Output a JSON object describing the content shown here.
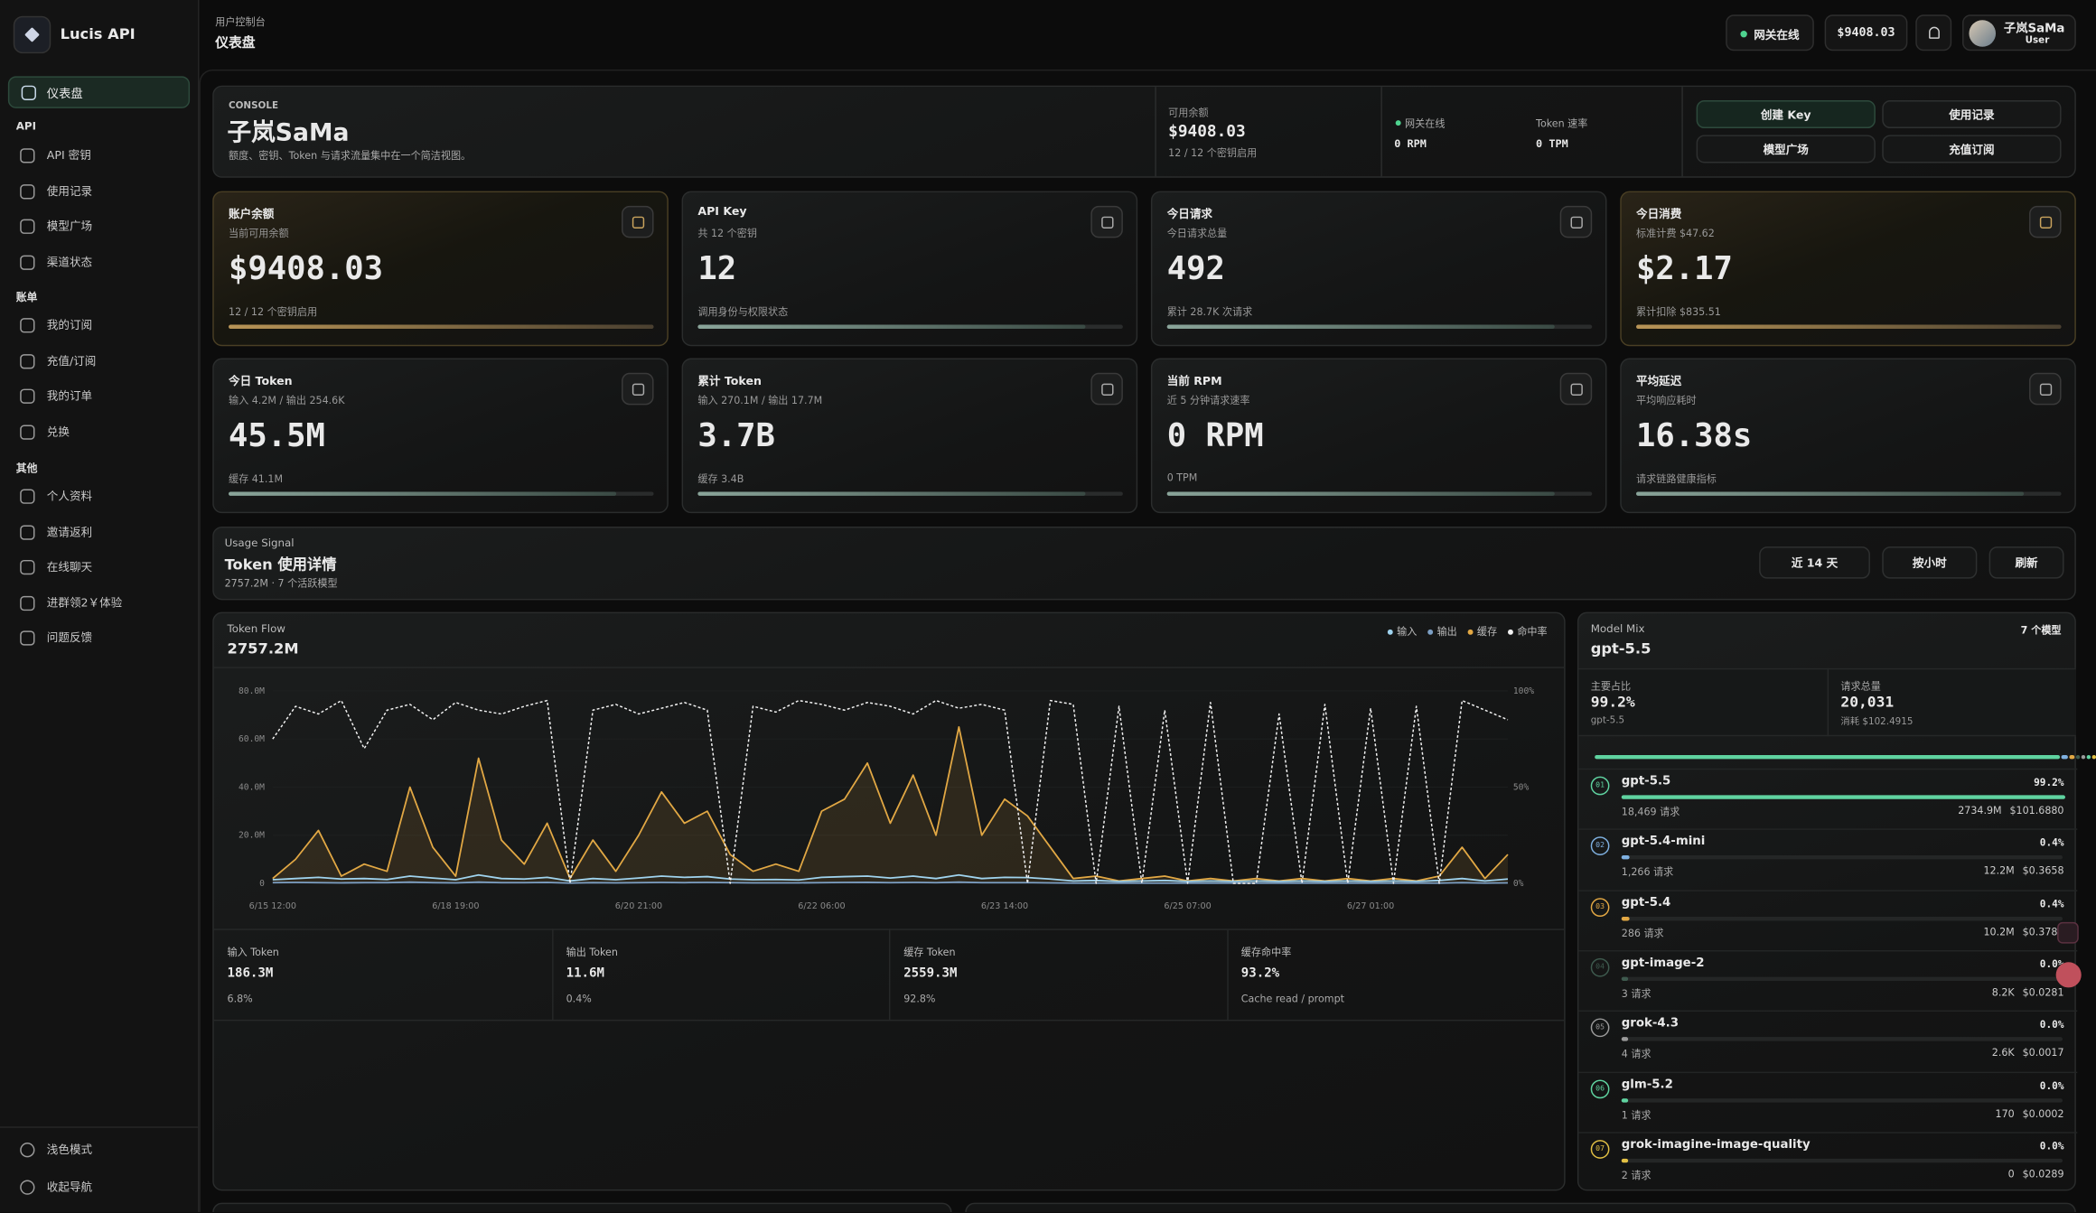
{
  "sidebar": {
    "brand": "Lucis API",
    "active": "仪表盘",
    "groups": [
      {
        "title": "API",
        "items": [
          "API 密钥",
          "使用记录",
          "模型广场",
          "渠道状态"
        ]
      },
      {
        "title": "账单",
        "items": [
          "我的订阅",
          "充值/订阅",
          "我的订单",
          "兑换"
        ]
      },
      {
        "title": "其他",
        "items": [
          "个人资料",
          "邀请返利",
          "在线聊天",
          "进群领2￥体验",
          "问题反馈"
        ]
      }
    ],
    "footer": [
      "浅色模式",
      "收起导航"
    ]
  },
  "header": {
    "breadcrumb": "用户控制台",
    "title": "仪表盘",
    "status": "网关在线",
    "balance": "$9408.03",
    "user": "子岚SaMa",
    "role": "User"
  },
  "console": {
    "tag": "CONSOLE",
    "name": "子岚SaMa",
    "description": "额度、密钥、Token 与请求流量集中在一个简洁视图。",
    "balance_label": "可用余额",
    "balance": "$9408.03",
    "balance_note": "12 / 12 个密钥启用",
    "gateway": "网关在线",
    "rpm": "0 RPM",
    "rate_label": "Token 速率",
    "tpm": "0 TPM",
    "actions": [
      "创建 Key",
      "使用记录",
      "模型广场",
      "充值订阅"
    ]
  },
  "stats": [
    {
      "title": "账户余额",
      "subtitle": "当前可用余额",
      "value": "$9408.03",
      "note": "12 / 12 个密钥启用"
    },
    {
      "title": "API Key",
      "subtitle": "共 12 个密钥",
      "value": "12",
      "note": "调用身份与权限状态"
    },
    {
      "title": "今日请求",
      "subtitle": "今日请求总量",
      "value": "492",
      "note": "累计 28.7K 次请求"
    },
    {
      "title": "今日消费",
      "subtitle": "标准计费 $47.62",
      "value": "$2.17",
      "note": "累计扣除 $835.51"
    },
    {
      "title": "今日 Token",
      "subtitle": "输入 4.2M / 输出 254.6K",
      "value": "45.5M",
      "note": "缓存 41.1M"
    },
    {
      "title": "累计 Token",
      "subtitle": "输入 270.1M / 输出 17.7M",
      "value": "3.7B",
      "note": "缓存 3.4B"
    },
    {
      "title": "当前 RPM",
      "subtitle": "近 5 分钟请求速率",
      "value": "0 RPM",
      "note": "0 TPM"
    },
    {
      "title": "平均延迟",
      "subtitle": "平均响应耗时",
      "value": "16.38s",
      "note": "请求链路健康指标"
    }
  ],
  "usage": {
    "tag": "Usage Signal",
    "title": "Token 使用详情",
    "subtitle": "2757.2M · 7 个活跃模型",
    "controls": [
      "近 14 天",
      "按小时",
      "刷新"
    ]
  },
  "chart_data": {
    "type": "line",
    "label": "Token Flow",
    "total": "2757.2M",
    "categories": [
      "6/15 12:00",
      null,
      null,
      null,
      null,
      null,
      null,
      null,
      "6/18 19:00",
      null,
      null,
      null,
      null,
      null,
      null,
      null,
      "6/20 21:00",
      null,
      null,
      null,
      null,
      null,
      null,
      null,
      "6/22 06:00",
      null,
      null,
      null,
      null,
      null,
      null,
      null,
      "6/23 14:00",
      null,
      null,
      null,
      null,
      null,
      null,
      null,
      "6/25 07:00",
      null,
      null,
      null,
      null,
      null,
      null,
      null,
      "6/27 01:00",
      null,
      null,
      null,
      null,
      null,
      null
    ],
    "series": [
      {
        "name": "输入",
        "color": "#9fd3ee",
        "values": [
          1.5,
          2,
          2.5,
          1.8,
          2,
          1.6,
          3,
          2.2,
          1.5,
          3.5,
          2,
          1.8,
          2.5,
          1,
          2,
          1.5,
          2.2,
          3,
          2.5,
          2.8,
          1.8,
          1.5,
          1.6,
          1.4,
          2.5,
          2.8,
          3,
          2.2,
          3,
          2,
          3.5,
          2,
          2.5,
          2.4,
          1.8,
          1,
          1.2,
          0.8,
          1,
          1.2,
          0.8,
          1,
          0.8,
          1,
          0.8,
          1,
          0.8,
          1,
          0.8,
          1,
          0.8,
          1.2,
          2,
          1,
          1.8
        ]
      },
      {
        "name": "输出",
        "color": "#7c9fc4",
        "values": [
          0.3,
          0.4,
          0.3,
          0.2,
          0.3,
          0.3,
          0.5,
          0.3,
          0.2,
          0.5,
          0.3,
          0.3,
          0.4,
          0.1,
          0.3,
          0.2,
          0.3,
          0.4,
          0.3,
          0.4,
          0.3,
          0.2,
          0.2,
          0.2,
          0.3,
          0.4,
          0.4,
          0.3,
          0.4,
          0.3,
          0.5,
          0.3,
          0.3,
          0.3,
          0.2,
          0.1,
          0.1,
          0.1,
          0.1,
          0.1,
          0.1,
          0.1,
          0.1,
          0.1,
          0.1,
          0.1,
          0.1,
          0.1,
          0.1,
          0.1,
          0.1,
          0.1,
          0.3,
          0.1,
          0.2
        ]
      },
      {
        "name": "缓存",
        "color": "#e2a844",
        "values": [
          2,
          10,
          22,
          3,
          8,
          5,
          40,
          15,
          3,
          52,
          18,
          8,
          25,
          2,
          18,
          5,
          20,
          38,
          25,
          30,
          12,
          5,
          8,
          5,
          30,
          35,
          50,
          25,
          45,
          20,
          65,
          20,
          35,
          28,
          15,
          2,
          3,
          1,
          2,
          3,
          1,
          2,
          1,
          2,
          1,
          2,
          1,
          2,
          1,
          2,
          1,
          3,
          15,
          2,
          12
        ]
      },
      {
        "name": "命中率",
        "color": "#f2f2f2",
        "axis": "y2",
        "values": [
          75,
          92,
          88,
          95,
          70,
          90,
          93,
          85,
          94,
          90,
          88,
          92,
          95,
          0,
          90,
          93,
          88,
          91,
          94,
          90,
          0,
          92,
          89,
          95,
          93,
          90,
          94,
          92,
          88,
          95,
          91,
          93,
          90,
          0,
          95,
          93,
          0,
          92,
          0,
          90,
          0,
          94,
          0,
          0,
          88,
          0,
          93,
          0,
          91,
          0,
          92,
          0,
          95,
          90,
          85
        ]
      }
    ],
    "ylim": [
      0,
      80
    ],
    "yticks": [
      0,
      {
        "value": 20,
        "label": "20.0M"
      },
      {
        "value": 40,
        "label": "40.0M"
      },
      {
        "value": 60,
        "label": "60.0M"
      },
      {
        "value": 80,
        "label": "80.0M"
      }
    ],
    "y2lim": [
      0,
      100
    ],
    "y2ticks": [
      {
        "value": 0,
        "label": "0%"
      },
      {
        "value": 50,
        "label": "50%"
      },
      {
        "value": 100,
        "label": "100%"
      }
    ]
  },
  "summary": [
    {
      "label": "输入 Token",
      "value": "186.3M",
      "note": "6.8%"
    },
    {
      "label": "输出 Token",
      "value": "11.6M",
      "note": "0.4%"
    },
    {
      "label": "缓存 Token",
      "value": "2559.3M",
      "note": "92.8%"
    },
    {
      "label": "缓存命中率",
      "value": "93.2%",
      "note": "Cache read / prompt"
    }
  ],
  "model_mix": {
    "label": "Model Mix",
    "model": "gpt-5.5",
    "count": "7 个模型",
    "primary_label": "主要占比",
    "primary_share": "99.2%",
    "primary_model": "gpt-5.5",
    "requests_label": "请求总量",
    "requests": "20,031",
    "cost": "消耗 $102.4915",
    "models": [
      {
        "rank": "01",
        "name": "gpt-5.5",
        "share": 99.2,
        "share_label": "99.2%",
        "requests": "18,469 请求",
        "tokens": "2734.9M",
        "cost": "$101.6880",
        "color": "#5fd3a0"
      },
      {
        "rank": "02",
        "name": "gpt-5.4-mini",
        "share": 0.4,
        "share_label": "0.4%",
        "requests": "1,266 请求",
        "tokens": "12.2M",
        "cost": "$0.3658",
        "color": "#7fb0e0"
      },
      {
        "rank": "03",
        "name": "gpt-5.4",
        "share": 0.4,
        "share_label": "0.4%",
        "requests": "286 请求",
        "tokens": "10.2M",
        "cost": "$0.3780",
        "color": "#e2a844"
      },
      {
        "rank": "04",
        "name": "gpt-image-2",
        "share": 0.0,
        "share_label": "0.0%",
        "requests": "3 请求",
        "tokens": "8.2K",
        "cost": "$0.0281",
        "color": "#3e5a4e"
      },
      {
        "rank": "05",
        "name": "grok-4.3",
        "share": 0.0,
        "share_label": "0.0%",
        "requests": "4 请求",
        "tokens": "2.6K",
        "cost": "$0.0017",
        "color": "#9a9a9a"
      },
      {
        "rank": "06",
        "name": "glm-5.2",
        "share": 0.0,
        "share_label": "0.0%",
        "requests": "1 请求",
        "tokens": "170",
        "cost": "$0.0002",
        "color": "#5fd3a0"
      },
      {
        "rank": "07",
        "name": "grok-imagine-image-quality",
        "share": 0.0,
        "share_label": "0.0%",
        "requests": "2 请求",
        "tokens": "0",
        "cost": "$0.0289",
        "color": "#e2c044"
      }
    ]
  }
}
